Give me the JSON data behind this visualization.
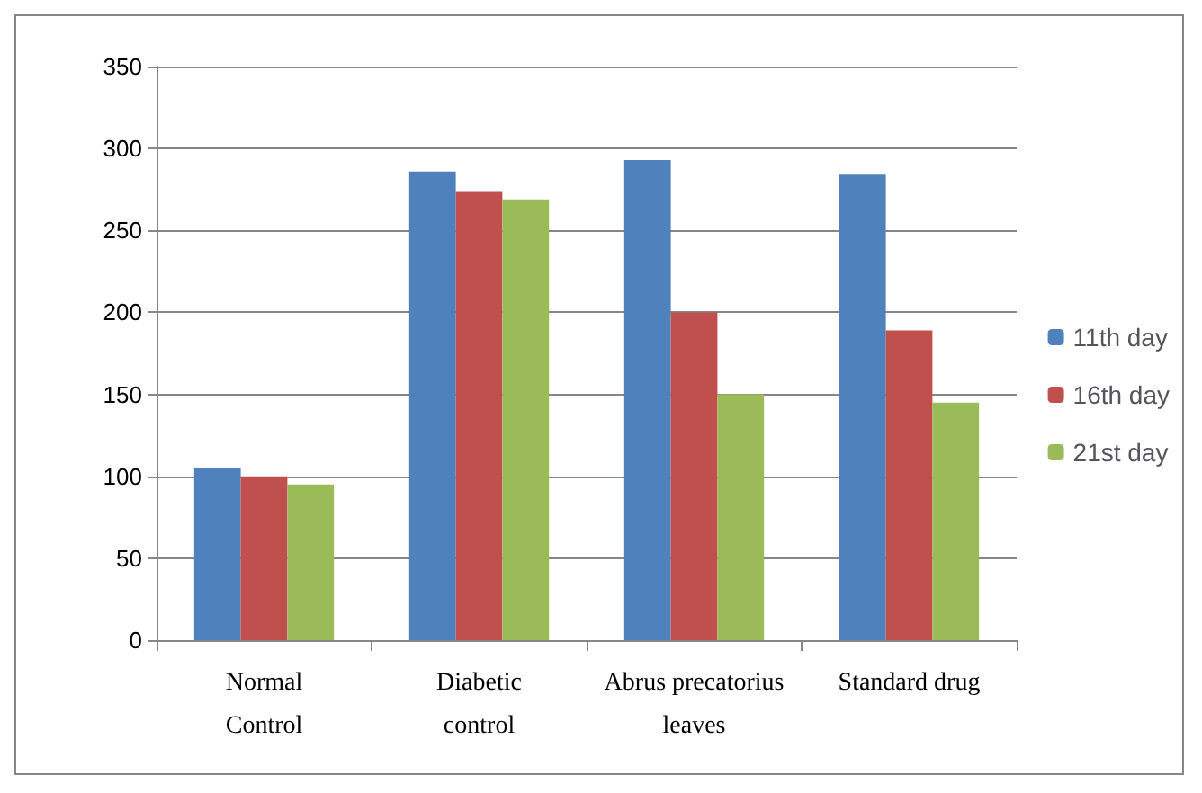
{
  "chart_data": {
    "type": "bar",
    "categories": [
      "Normal\nControl",
      "Diabetic\ncontrol",
      "Abrus precatorius\nleaves",
      "Standard drug"
    ],
    "series": [
      {
        "name": "11th day",
        "color": "#4f81bd",
        "values": [
          105,
          286,
          293,
          284
        ]
      },
      {
        "name": "16th day",
        "color": "#c0504d",
        "values": [
          100,
          274,
          200,
          189
        ]
      },
      {
        "name": "21st day",
        "color": "#9bbb59",
        "values": [
          95,
          269,
          150,
          145
        ]
      }
    ],
    "ylim": [
      0,
      350
    ],
    "yticks": [
      0,
      50,
      100,
      150,
      200,
      250,
      300,
      350
    ],
    "grid": "y",
    "legend": "right"
  }
}
